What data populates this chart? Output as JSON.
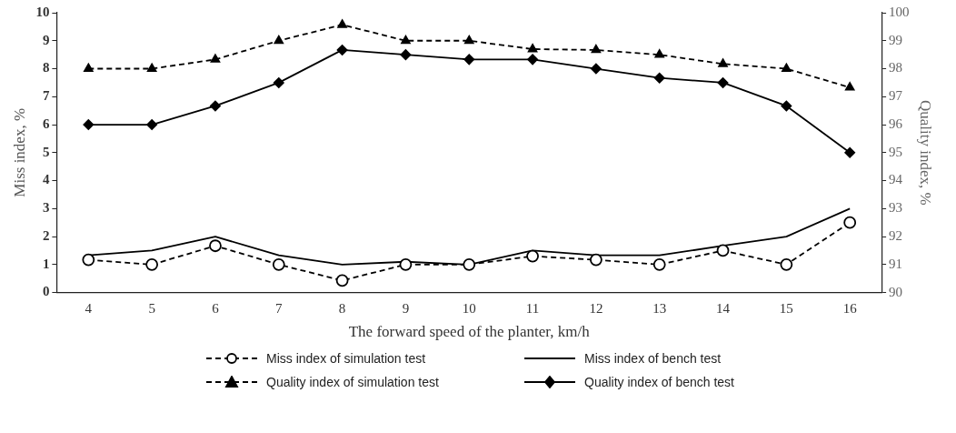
{
  "chart_data": {
    "type": "line",
    "xlabel": "The forward speed of the planter, km/h",
    "ylabel": "Miss index, %",
    "y2label": "Quality index, %",
    "categories": [
      "4",
      "5",
      "6",
      "7",
      "8",
      "9",
      "10",
      "11",
      "12",
      "13",
      "14",
      "15",
      "16"
    ],
    "ylim": [
      0,
      10
    ],
    "yticks": [
      0,
      1,
      2,
      3,
      4,
      5,
      6,
      7,
      8,
      9,
      10
    ],
    "y2lim": [
      90,
      100
    ],
    "y2ticks": [
      90,
      91,
      92,
      93,
      94,
      95,
      96,
      97,
      98,
      99,
      100
    ],
    "grid": false,
    "legend": "bottom",
    "series": [
      {
        "name": "Miss index of simulation test",
        "color": "#000000",
        "marker": "circle",
        "line_style": "dashed",
        "values": [
          1.17,
          1,
          1.67,
          1,
          0.43,
          1,
          1,
          1.3,
          1.17,
          1,
          1.5,
          1,
          2.5
        ]
      },
      {
        "name": "Miss index of bench test",
        "color": "#000000",
        "marker": "none",
        "line_style": "solid",
        "values": [
          1.33,
          1.5,
          2,
          1.33,
          1,
          1.1,
          1,
          1.5,
          1.33,
          1.33,
          1.67,
          2,
          3
        ]
      },
      {
        "name": "Quality index of simulation test",
        "color": "#000000",
        "marker": "triangle",
        "line_style": "dashed",
        "axis": "y2",
        "values": [
          98,
          98,
          98.33,
          99,
          99.57,
          99,
          99,
          98.7,
          98.67,
          98.5,
          98.17,
          98,
          97.33
        ]
      },
      {
        "name": "Quality index of bench test",
        "color": "#000000",
        "marker": "diamond",
        "line_style": "solid",
        "axis": "y2",
        "values": [
          96,
          96,
          96.67,
          97.5,
          98.67,
          98.5,
          98.33,
          98.33,
          98,
          97.67,
          97.5,
          96.67,
          95
        ]
      }
    ]
  }
}
